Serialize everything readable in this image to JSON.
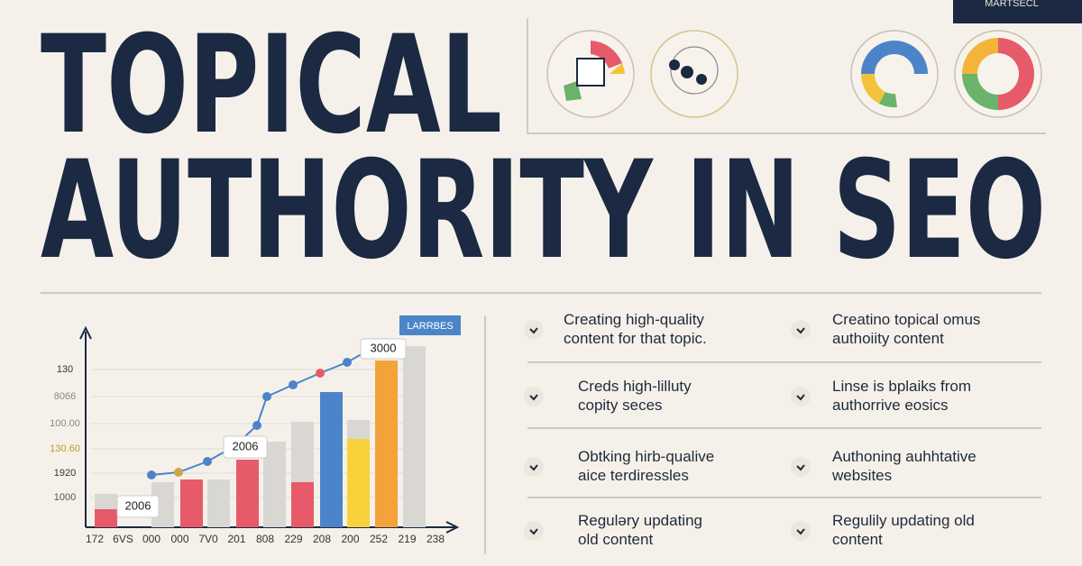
{
  "badge": "MARTSECL",
  "title": {
    "line1": "TOPICAL",
    "line2": "AUTHORITY IN SEO"
  },
  "chart": {
    "legend": "LARRBES",
    "y_labels": [
      "130",
      "8066",
      "100.00",
      "130.60",
      "1920",
      "1000"
    ],
    "x_labels": [
      "172",
      "6VS",
      "000",
      "000",
      "7V0",
      "201",
      "808",
      "229",
      "208",
      "200",
      "252",
      "219",
      "238"
    ],
    "callouts": [
      "3000",
      "2006",
      "2006"
    ]
  },
  "list": {
    "left": [
      {
        "lines": [
          "Creating high-quality",
          "content for that topic."
        ]
      },
      {
        "lines": [
          "Creds high-lilluty",
          "copity seces"
        ]
      },
      {
        "lines": [
          "Obtking hirb-qualive",
          "aice terdiressles"
        ]
      },
      {
        "lines": [
          "Reguləry updating",
          "old content"
        ]
      }
    ],
    "right": [
      {
        "lines": [
          "Creatino topical omus",
          "authoiity content"
        ]
      },
      {
        "lines": [
          "Linse is bplaiks from",
          "authorrive eosics"
        ]
      },
      {
        "lines": [
          "Authoning auhhtative",
          "websites"
        ]
      },
      {
        "lines": [
          "Regulily updating old",
          "content"
        ]
      }
    ]
  }
}
